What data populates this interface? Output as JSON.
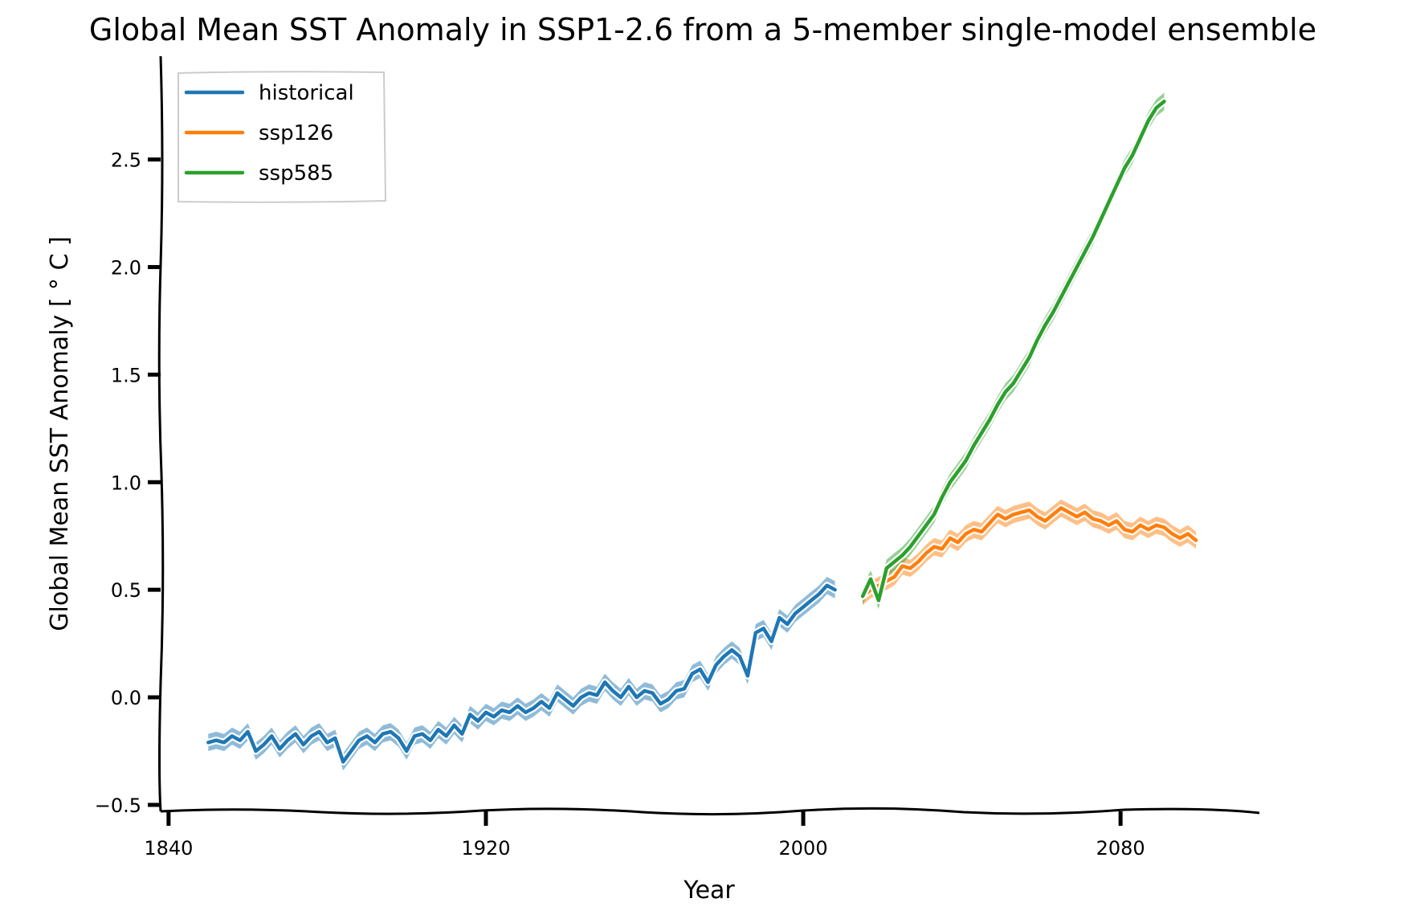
{
  "chart_data": {
    "type": "line",
    "title": "Global Mean SST Anomaly in SSP1-2.6 from a 5-member single-model ensemble",
    "xlabel": "Year",
    "ylabel": "Global Mean SST Anomaly [$^\\circ C$]",
    "ylabel_display": "Global Mean SST Anomaly [ ° C ]",
    "xlim": [
      1838,
      2115
    ],
    "ylim": [
      -0.53,
      2.98
    ],
    "xticks": [
      1840,
      1920,
      2000,
      2080
    ],
    "yticks": [
      -0.5,
      0.0,
      0.5,
      1.0,
      1.5,
      2.0,
      2.5
    ],
    "xtick_labels": [
      "1840",
      "1920",
      "2000",
      "2080"
    ],
    "ytick_labels": [
      "−0.5",
      "0.0",
      "0.5",
      "1.0",
      "1.5",
      "2.0",
      "2.5"
    ],
    "legend_position": "top-left",
    "grid": false,
    "series": [
      {
        "name": "historical",
        "color": "#1f77b4",
        "x_start": 1850,
        "x_step": 2,
        "values": [
          -0.21,
          -0.2,
          -0.21,
          -0.18,
          -0.2,
          -0.16,
          -0.25,
          -0.22,
          -0.18,
          -0.24,
          -0.2,
          -0.17,
          -0.22,
          -0.18,
          -0.16,
          -0.21,
          -0.19,
          -0.3,
          -0.25,
          -0.2,
          -0.18,
          -0.21,
          -0.17,
          -0.16,
          -0.19,
          -0.25,
          -0.18,
          -0.17,
          -0.2,
          -0.15,
          -0.18,
          -0.13,
          -0.17,
          -0.08,
          -0.11,
          -0.07,
          -0.09,
          -0.06,
          -0.07,
          -0.04,
          -0.07,
          -0.05,
          -0.02,
          -0.05,
          0.02,
          -0.01,
          -0.04,
          0.0,
          0.02,
          0.01,
          0.07,
          0.03,
          0.0,
          0.05,
          0.0,
          0.03,
          0.02,
          -0.03,
          -0.01,
          0.03,
          0.04,
          0.11,
          0.13,
          0.07,
          0.15,
          0.19,
          0.22,
          0.19,
          0.1,
          0.3,
          0.32,
          0.26,
          0.37,
          0.34,
          0.39,
          0.42,
          0.45,
          0.48,
          0.52,
          0.5
        ],
        "band_half_width": 0.04
      },
      {
        "name": "ssp126",
        "color": "#ff7f0e",
        "x_start": 2015,
        "x_step": 2,
        "values": [
          0.47,
          0.5,
          0.52,
          0.54,
          0.56,
          0.61,
          0.6,
          0.63,
          0.67,
          0.7,
          0.69,
          0.74,
          0.72,
          0.76,
          0.78,
          0.77,
          0.81,
          0.85,
          0.83,
          0.85,
          0.86,
          0.87,
          0.84,
          0.82,
          0.85,
          0.88,
          0.86,
          0.84,
          0.86,
          0.83,
          0.82,
          0.8,
          0.82,
          0.78,
          0.77,
          0.8,
          0.78,
          0.8,
          0.79,
          0.76,
          0.74,
          0.76,
          0.73
        ],
        "band_half_width": 0.04
      },
      {
        "name": "ssp585",
        "color": "#2ca02c",
        "x_start": 2015,
        "x_step": 2,
        "values": [
          0.47,
          0.55,
          0.45,
          0.6,
          0.63,
          0.66,
          0.7,
          0.75,
          0.8,
          0.85,
          0.93,
          1.0,
          1.05,
          1.1,
          1.17,
          1.23,
          1.29,
          1.36,
          1.42,
          1.46,
          1.52,
          1.58,
          1.66,
          1.73,
          1.79,
          1.86,
          1.93,
          2.0,
          2.07,
          2.14,
          2.22,
          2.3,
          2.38,
          2.46,
          2.52,
          2.6,
          2.68,
          2.74,
          2.77
        ],
        "band_half_width": 0.04
      }
    ]
  }
}
